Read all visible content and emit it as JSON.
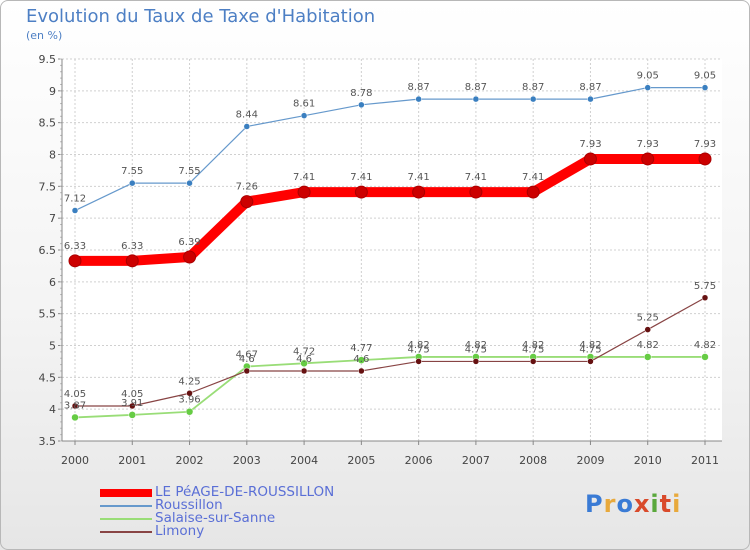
{
  "title": "Evolution du Taux de Taxe d'Habitation",
  "subtitle": "(en %)",
  "logo": {
    "text": "Proxiti",
    "letter_colors": [
      "#3a7bd5",
      "#e8a93c",
      "#3a7bd5",
      "#d94a2b",
      "#5aa83c",
      "#d94a2b",
      "#e8a93c"
    ]
  },
  "chart_data": {
    "type": "line",
    "title": "Evolution du Taux de Taxe d'Habitation",
    "ylabel": "(en %)",
    "xlabel": "",
    "ylim": [
      3.5,
      9.5
    ],
    "yticks": [
      "3.5",
      "4",
      "4.5",
      "5",
      "5.5",
      "6",
      "6.5",
      "7",
      "7.5",
      "8",
      "8.5",
      "9",
      "9.5"
    ],
    "x": [
      "2000",
      "2001",
      "2002",
      "2003",
      "2004",
      "2005",
      "2006",
      "2007",
      "2008",
      "2009",
      "2010",
      "2011"
    ],
    "grid": true,
    "legend_position": "bottom-left",
    "series": [
      {
        "name": "LE PéAGE-DE-ROUSSILLON",
        "color": "#ff0000",
        "marker_color": "#cc0000",
        "values": [
          6.33,
          6.33,
          6.39,
          7.26,
          7.41,
          7.41,
          7.41,
          7.41,
          7.41,
          7.93,
          7.93,
          7.93
        ],
        "labels": [
          "6.33",
          "6.33",
          "6.39",
          "7.26",
          "7.41",
          "7.41",
          "7.41",
          "7.41",
          "7.41",
          "7.93",
          "7.93",
          "7.93"
        ]
      },
      {
        "name": "Roussillon",
        "color": "#6699cc",
        "marker_color": "#3a7fc0",
        "values": [
          7.12,
          7.55,
          7.55,
          8.44,
          8.61,
          8.78,
          8.87,
          8.87,
          8.87,
          8.87,
          9.05,
          9.05
        ],
        "labels": [
          "7.12",
          "7.55",
          "7.55",
          "8.44",
          "8.61",
          "8.78",
          "8.87",
          "8.87",
          "8.87",
          "8.87",
          "9.05",
          "9.05"
        ]
      },
      {
        "name": "Salaise-sur-Sanne",
        "color": "#99dd77",
        "marker_color": "#66cc44",
        "values": [
          3.87,
          3.91,
          3.96,
          4.67,
          4.72,
          4.77,
          4.82,
          4.82,
          4.82,
          4.82,
          4.82,
          4.82
        ],
        "labels": [
          "3.87",
          "3.91",
          "3.96",
          "4.67",
          "4.72",
          "4.77",
          "4.82",
          "4.82",
          "4.82",
          "4.82",
          "4.82",
          "4.82"
        ]
      },
      {
        "name": "Limony",
        "color": "#884444",
        "marker_color": "#661111",
        "values": [
          4.05,
          4.05,
          4.25,
          4.6,
          4.6,
          4.6,
          4.75,
          4.75,
          4.75,
          4.75,
          5.25,
          5.75
        ],
        "labels": [
          "4.05",
          "4.05",
          "4.25",
          "4.6",
          "4.6",
          "4.6",
          "4.75",
          "4.75",
          "4.75",
          "4.75",
          "5.25",
          "5.75"
        ]
      }
    ]
  }
}
